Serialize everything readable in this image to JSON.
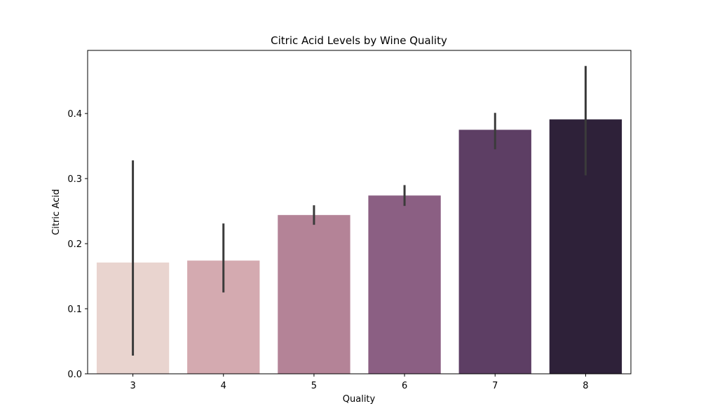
{
  "chart_data": {
    "type": "bar",
    "title": "Citric Acid Levels by Wine Quality",
    "xlabel": "Quality",
    "ylabel": "Citric Acid",
    "categories": [
      "3",
      "4",
      "5",
      "6",
      "7",
      "8"
    ],
    "values": [
      0.171,
      0.174,
      0.244,
      0.274,
      0.375,
      0.391
    ],
    "error_bars": {
      "lower": [
        0.028,
        0.125,
        0.229,
        0.258,
        0.345,
        0.305
      ],
      "upper": [
        0.328,
        0.231,
        0.259,
        0.29,
        0.401,
        0.473
      ]
    },
    "colors": [
      "#e9d4cf",
      "#d4aab0",
      "#b48397",
      "#8b5f83",
      "#5d3e64",
      "#2e2139"
    ],
    "error_bar_color": "#3b3b3b",
    "yticks": [
      0.0,
      0.1,
      0.2,
      0.3,
      0.4
    ],
    "ytick_labels": [
      "0.0",
      "0.1",
      "0.2",
      "0.3",
      "0.4"
    ],
    "ylim": [
      0,
      0.497
    ],
    "grid": false,
    "legend": "none"
  }
}
